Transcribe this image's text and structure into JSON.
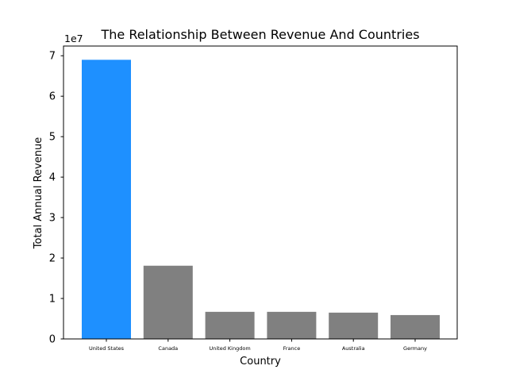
{
  "chart_data": {
    "type": "bar",
    "title": "The Relationship Between Revenue And Countries",
    "xlabel": "Country",
    "ylabel": "Total Annual Revenue",
    "y_offset_label": "1e7",
    "y_scale": 10000000,
    "categories": [
      "United States",
      "Canada",
      "United Kingdom",
      "France",
      "Australia",
      "Germany"
    ],
    "values": [
      69000000,
      18100000,
      6700000,
      6700000,
      6500000,
      5900000
    ],
    "ylim": [
      0,
      72400000
    ],
    "yticks": [
      0,
      10000000,
      20000000,
      30000000,
      40000000,
      50000000,
      60000000,
      70000000
    ],
    "ytick_labels": [
      "0",
      "1",
      "2",
      "3",
      "4",
      "5",
      "6",
      "7"
    ],
    "bar_colors": [
      "#1e90ff",
      "#808080",
      "#808080",
      "#808080",
      "#808080",
      "#808080"
    ],
    "grid": false,
    "legend": "none"
  }
}
